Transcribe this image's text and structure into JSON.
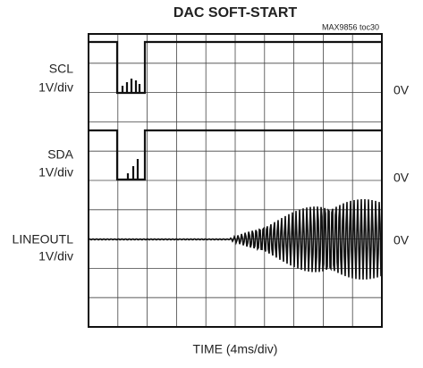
{
  "title": "DAC SOFT-START",
  "code": "MAX9856 toc30",
  "channels": [
    {
      "name": "SCL",
      "scale": "1V/div",
      "ground": "0V"
    },
    {
      "name": "SDA",
      "scale": "1V/div",
      "ground": "0V"
    },
    {
      "name": "LINEOUTL",
      "scale": "1V/div",
      "ground": "0V"
    }
  ],
  "xlabel": "TIME (4ms/div)"
}
